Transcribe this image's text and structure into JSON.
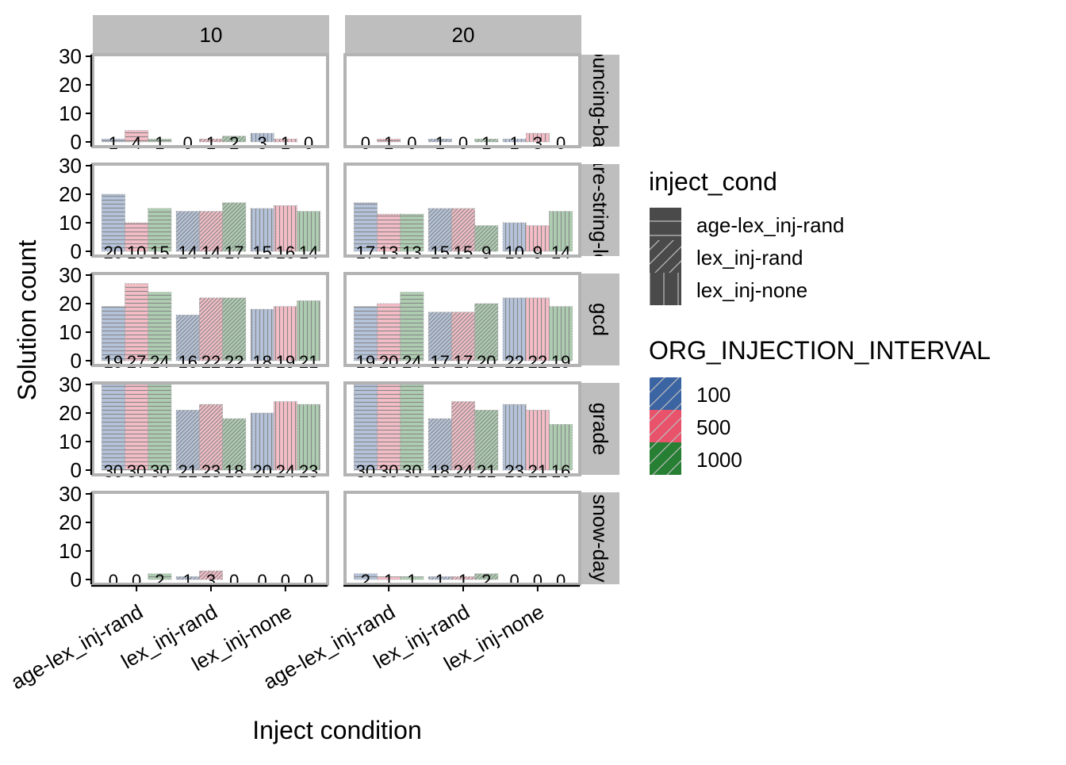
{
  "chart_data": {
    "type": "bar",
    "xlabel": "Inject condition",
    "ylabel": "Solution count",
    "ylim": [
      0,
      31
    ],
    "y_ticks": [
      "0",
      "10",
      "20",
      "30"
    ],
    "grid": false,
    "legend_position": "right",
    "categories": [
      "age-lex_inj-rand",
      "lex_inj-rand",
      "lex_inj-none"
    ],
    "column_facets": [
      "10",
      "20"
    ],
    "row_facets": [
      {
        "id": "bouncing-balls",
        "label": "bouncing-balls"
      },
      {
        "id": "compare-string-lengths",
        "label": "compare-string-lengths"
      },
      {
        "id": "gcd",
        "label": "gcd"
      },
      {
        "id": "grade",
        "label": "grade"
      },
      {
        "id": "snow-day",
        "label": "snow-day"
      }
    ],
    "series_names": [
      "100",
      "500",
      "1000"
    ],
    "legends": {
      "inject_cond": {
        "title": "inject_cond",
        "items": [
          "age-lex_inj-rand",
          "lex_inj-rand",
          "lex_inj-none"
        ],
        "key_color": "#4a4a4a",
        "pattern_color": "#bdbdbd"
      },
      "interval": {
        "title": "ORG_INJECTION_INTERVAL",
        "items": [
          "100",
          "500",
          "1000"
        ],
        "colors": [
          "#3b64a3",
          "#e8526b",
          "#267f33"
        ]
      }
    },
    "panels": [
      {
        "row": "bouncing-balls",
        "col": "10",
        "values": [
          [
            1,
            4,
            1
          ],
          [
            0,
            1,
            2
          ],
          [
            3,
            1,
            0
          ]
        ]
      },
      {
        "row": "bouncing-balls",
        "col": "20",
        "values": [
          [
            0,
            1,
            0
          ],
          [
            1,
            0,
            1
          ],
          [
            1,
            3,
            0
          ]
        ]
      },
      {
        "row": "compare-string-lengths",
        "col": "10",
        "values": [
          [
            20,
            10,
            15
          ],
          [
            14,
            14,
            17
          ],
          [
            15,
            16,
            14
          ]
        ]
      },
      {
        "row": "compare-string-lengths",
        "col": "20",
        "values": [
          [
            17,
            13,
            13
          ],
          [
            15,
            15,
            9
          ],
          [
            10,
            9,
            14
          ]
        ]
      },
      {
        "row": "gcd",
        "col": "10",
        "values": [
          [
            19,
            27,
            24
          ],
          [
            16,
            22,
            22
          ],
          [
            18,
            19,
            21
          ]
        ]
      },
      {
        "row": "gcd",
        "col": "20",
        "values": [
          [
            19,
            20,
            24
          ],
          [
            17,
            17,
            20
          ],
          [
            22,
            22,
            19
          ]
        ]
      },
      {
        "row": "grade",
        "col": "10",
        "values": [
          [
            30,
            30,
            30
          ],
          [
            21,
            23,
            18
          ],
          [
            20,
            24,
            23
          ]
        ]
      },
      {
        "row": "grade",
        "col": "20",
        "values": [
          [
            30,
            30,
            30
          ],
          [
            18,
            24,
            21
          ],
          [
            23,
            21,
            16
          ]
        ]
      },
      {
        "row": "snow-day",
        "col": "10",
        "values": [
          [
            0,
            0,
            2
          ],
          [
            1,
            3,
            0
          ],
          [
            0,
            0,
            0
          ]
        ]
      },
      {
        "row": "snow-day",
        "col": "20",
        "values": [
          [
            2,
            1,
            1
          ],
          [
            1,
            1,
            2
          ],
          [
            0,
            0,
            0
          ]
        ]
      }
    ]
  }
}
